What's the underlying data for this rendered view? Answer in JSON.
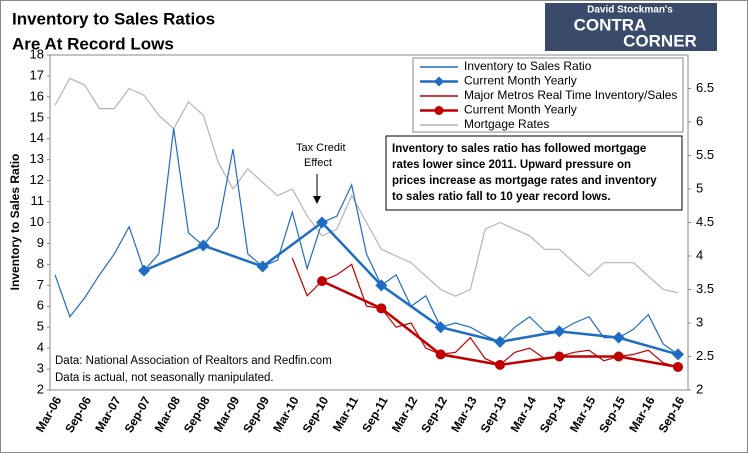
{
  "chart_data": {
    "type": "line",
    "title": [
      "Inventory to Sales Ratios",
      "Are At Record Lows"
    ],
    "logo": [
      "David Stockman's",
      "CONTRA",
      "CORNER"
    ],
    "ylabel": "Inventory to Sales Ratio",
    "categories": [
      "Mar-06",
      null,
      "Sep-06",
      null,
      "Mar-07",
      null,
      "Sep-07",
      null,
      "Mar-08",
      null,
      "Sep-08",
      null,
      "Mar-09",
      null,
      "Sep-09",
      null,
      "Mar-10",
      null,
      "Sep-10",
      null,
      "Mar-11",
      null,
      "Sep-11",
      null,
      "Mar-12",
      null,
      "Sep-12",
      null,
      "Mar-13",
      null,
      "Sep-13",
      null,
      "Mar-14",
      null,
      "Sep-14",
      null,
      "Mar-15",
      null,
      "Sep-15",
      null,
      "Mar-16",
      null,
      "Sep-16"
    ],
    "ylim": [
      2,
      18
    ],
    "yticks": [
      2,
      3,
      4,
      5,
      6,
      7,
      8,
      9,
      10,
      11,
      12,
      13,
      14,
      15,
      16,
      17,
      18
    ],
    "y2lim": [
      2,
      7
    ],
    "y2ticks": [
      2,
      2.5,
      3,
      3.5,
      4,
      4.5,
      5,
      5.5,
      6,
      6.5
    ],
    "grid": false,
    "legend": "upper right",
    "series": [
      {
        "name": "Inventory to Sales Ratio",
        "color": "#1f6cc4",
        "style": "thin",
        "values": [
          7.5,
          5.5,
          6.4,
          7.5,
          8.5,
          9.8,
          7.7,
          8.5,
          14.5,
          9.5,
          8.9,
          9.8,
          13.5,
          8.5,
          7.9,
          8.2,
          10.5,
          7.8,
          10.0,
          10.3,
          11.8,
          8.5,
          7.0,
          7.5,
          6.0,
          6.5,
          5.0,
          5.2,
          5.0,
          4.6,
          4.3,
          5.0,
          5.5,
          4.8,
          4.8,
          5.2,
          5.5,
          4.5,
          4.5,
          4.9,
          5.6,
          4.2,
          3.7
        ]
      },
      {
        "name": "Current Month Yearly",
        "color": "#1f6cc4",
        "style": "diamond",
        "x": [
          "Sep-07",
          "Sep-08",
          "Sep-09",
          "Sep-10",
          "Sep-11",
          "Sep-12",
          "Sep-13",
          "Sep-14",
          "Sep-15",
          "Sep-16"
        ],
        "values": [
          7.7,
          8.9,
          7.9,
          10.0,
          7.0,
          5.0,
          4.3,
          4.8,
          4.5,
          3.7
        ]
      },
      {
        "name": "Major Metros Real Time Inventory/Sales",
        "color": "#c00000",
        "style": "thin",
        "values": [
          null,
          null,
          null,
          null,
          null,
          null,
          null,
          null,
          null,
          null,
          null,
          null,
          null,
          null,
          null,
          null,
          8.3,
          6.5,
          7.2,
          7.5,
          8.0,
          6.0,
          5.9,
          5.0,
          5.2,
          4.0,
          3.7,
          3.8,
          4.5,
          3.5,
          3.2,
          3.8,
          4.0,
          3.5,
          3.6,
          3.8,
          3.9,
          3.4,
          3.6,
          3.7,
          3.9,
          3.3,
          3.1
        ]
      },
      {
        "name": "Current Month Yearly",
        "color": "#c00000",
        "style": "circle",
        "x": [
          "Sep-10",
          "Sep-11",
          "Sep-12",
          "Sep-13",
          "Sep-14",
          "Sep-15",
          "Sep-16"
        ],
        "values": [
          7.2,
          5.9,
          3.7,
          3.2,
          3.6,
          3.6,
          3.1
        ]
      },
      {
        "name": "Mortgage Rates",
        "color": "#b4b4b4",
        "style": "thin",
        "axis": "y2",
        "values": [
          6.25,
          6.65,
          6.55,
          6.2,
          6.2,
          6.5,
          6.4,
          6.1,
          5.9,
          6.3,
          6.1,
          5.4,
          5.0,
          5.3,
          5.1,
          4.9,
          5.0,
          4.6,
          4.3,
          4.4,
          4.9,
          4.5,
          4.1,
          4.0,
          3.9,
          3.7,
          3.5,
          3.4,
          3.5,
          4.4,
          4.5,
          4.4,
          4.3,
          4.1,
          4.1,
          3.9,
          3.7,
          3.9,
          3.9,
          3.9,
          3.7,
          3.5,
          3.45
        ]
      }
    ],
    "annotations": {
      "tax_credit": [
        "Tax Credit",
        "Effect"
      ],
      "box": [
        "Inventory to sales ratio has followed mortgage",
        "rates lower since 2011. Upward pressure on",
        "prices increase as mortgage rates and inventory",
        "to sales ratio fall to 10 year record lows."
      ],
      "source": [
        "Data: National Association of Realtors and Redfin.com",
        "Data is actual, not seasonally manipulated."
      ]
    }
  }
}
